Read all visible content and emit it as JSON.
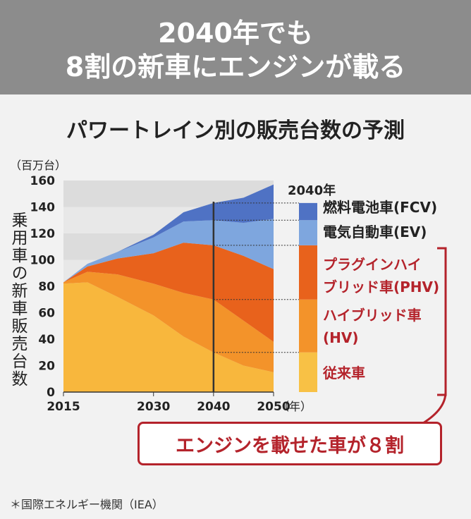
{
  "banner": {
    "line1": "2040年でも",
    "line2": "8割の新車にエンジンが載る"
  },
  "subtitle": "パワートレイン別の販売台数の予測",
  "callout": "エンジンを載せた車が８割",
  "footnote": "＊国際エネルギー機関（IEA）",
  "colors": {
    "fcv": "#4f72c4",
    "ev": "#7ea6de",
    "phv": "#e8621c",
    "hv": "#f3932a",
    "conv": "#f8b73d",
    "bg_top": "#dcdcdc",
    "bg_band": "#e8e8e8",
    "red": "#b4232b",
    "bar_conv": "#f8c145"
  },
  "chart_data": {
    "type": "area",
    "title": "パワートレイン別の販売台数の予測",
    "unit_label": "（百万台）",
    "ylabel": "乗用車の新車販売台数",
    "xlabel": "（年）",
    "xlim": [
      2015,
      2050
    ],
    "ylim": [
      0,
      160
    ],
    "yticks": [
      0,
      20,
      40,
      60,
      80,
      100,
      120,
      140,
      160
    ],
    "xticks": [
      2015,
      2030,
      2040,
      2050
    ],
    "grid": "horizontal bands",
    "stacking": "stacked",
    "marker_year": 2040,
    "x": [
      2015,
      2019,
      2024,
      2030,
      2035,
      2040,
      2045,
      2050
    ],
    "series": [
      {
        "key": "conv",
        "name": "従来車",
        "values": [
          82,
          83,
          72,
          58,
          42,
          30,
          20,
          15
        ]
      },
      {
        "key": "hv",
        "name": "ハイブリッド車(HV)",
        "values": [
          1,
          8,
          17,
          24,
          33,
          40,
          34,
          23
        ]
      },
      {
        "key": "phv",
        "name": "プラグインハイブリッド車(PHV)",
        "values": [
          0,
          4,
          12,
          23,
          38,
          41,
          49,
          55
        ]
      },
      {
        "key": "ev",
        "name": "電気自動車(EV)",
        "values": [
          0,
          2,
          5,
          12,
          16,
          19,
          25,
          38
        ]
      },
      {
        "key": "fcv",
        "name": "燃料電池車(FCV)",
        "values": [
          0,
          0,
          0,
          2,
          7,
          13,
          19,
          26
        ]
      }
    ],
    "bar_2040": {
      "label": "2040年",
      "segments": [
        {
          "key": "conv",
          "value": 30
        },
        {
          "key": "hv",
          "value": 40
        },
        {
          "key": "phv",
          "value": 41
        },
        {
          "key": "ev",
          "value": 19
        },
        {
          "key": "fcv",
          "value": 13
        }
      ]
    },
    "legend": [
      {
        "key": "fcv",
        "text": "燃料電池車(FCV)",
        "color": "dark"
      },
      {
        "key": "ev",
        "text": "電気自動車(EV)",
        "color": "dark"
      },
      {
        "key": "phv",
        "lines": [
          "プラグインハイ",
          "ブリッド車(PHV)"
        ],
        "color": "red"
      },
      {
        "key": "hv",
        "lines": [
          "ハイブリッド車",
          "(HV)"
        ],
        "color": "red"
      },
      {
        "key": "conv",
        "text": "従来車",
        "color": "red"
      }
    ]
  }
}
